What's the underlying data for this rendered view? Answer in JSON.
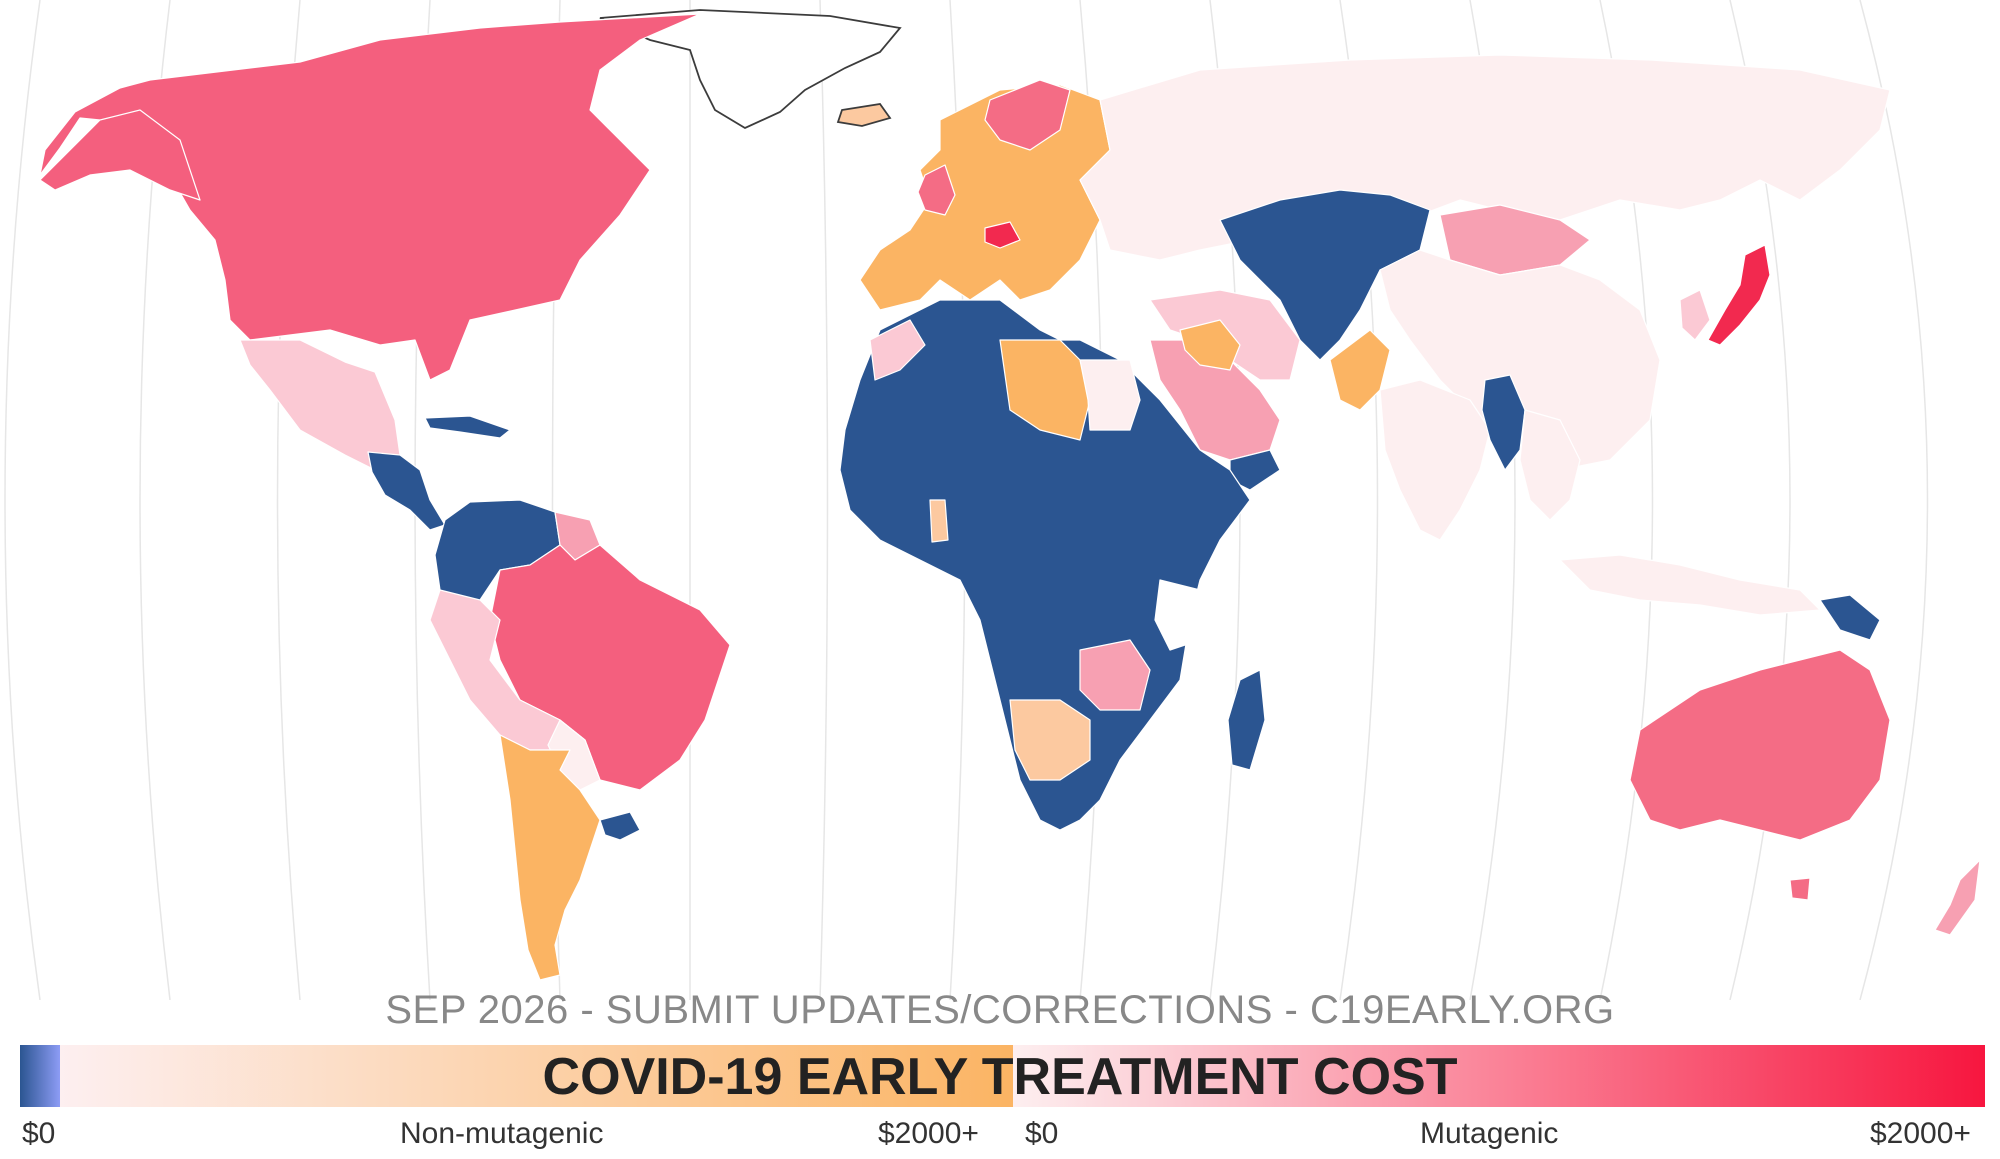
{
  "footer": {
    "note": "SEP 2026 - SUBMIT UPDATES/CORRECTIONS - C19EARLY.ORG"
  },
  "legend": {
    "title": "COVID-19 EARLY TREATMENT COST",
    "left_scale": {
      "min": "$0",
      "label": "Non-mutagenic",
      "max": "$2000+"
    },
    "right_scale": {
      "min": "$0",
      "label": "Mutagenic",
      "max": "$2000+"
    }
  },
  "colors": {
    "navy": "#2b5591",
    "orange": "#fbb463",
    "peach": "#fcc9a0",
    "light_pink": "#fdeff0",
    "pink": "#fbc9d4",
    "mid_pink": "#f7a0b2",
    "rose": "#f45f7e",
    "red": "#f2294f",
    "coral": "#f46c85",
    "coast": "#3c3c3c",
    "graticule": "#e6e6e6"
  },
  "regions": [
    {
      "name": "Canada & USA",
      "category": "mutagenic",
      "color_key": "rose"
    },
    {
      "name": "Mexico",
      "category": "mutagenic",
      "color_key": "pink"
    },
    {
      "name": "Central America",
      "category": "non-mutagenic",
      "color_key": "navy"
    },
    {
      "name": "Brazil",
      "category": "mutagenic",
      "color_key": "rose"
    },
    {
      "name": "Argentina",
      "category": "non-mutagenic",
      "color_key": "orange"
    },
    {
      "name": "Western Europe",
      "category": "non-mutagenic",
      "color_key": "orange"
    },
    {
      "name": "Russia",
      "category": "mutagenic",
      "color_key": "light_pink"
    },
    {
      "name": "China",
      "category": "mutagenic",
      "color_key": "light_pink"
    },
    {
      "name": "Japan",
      "category": "mutagenic",
      "color_key": "red"
    },
    {
      "name": "Africa",
      "category": "non-mutagenic",
      "color_key": "navy"
    },
    {
      "name": "Libya",
      "category": "non-mutagenic",
      "color_key": "orange"
    },
    {
      "name": "Australia",
      "category": "mutagenic",
      "color_key": "coral"
    },
    {
      "name": "Kazakhstan",
      "category": "non-mutagenic",
      "color_key": "navy"
    }
  ]
}
